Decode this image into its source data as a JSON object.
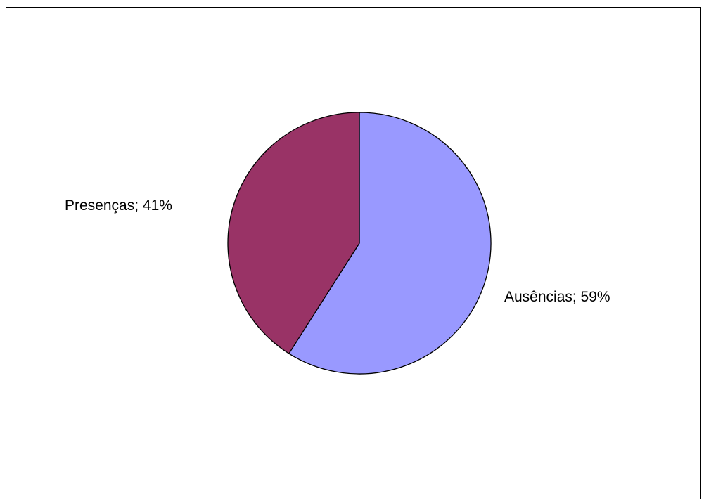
{
  "chart_data": {
    "type": "pie",
    "title": "",
    "slices": [
      {
        "label": "Ausências",
        "value": 59,
        "display": "Ausências; 59%",
        "color": "#9999FF"
      },
      {
        "label": "Presenças",
        "value": 41,
        "display": "Presenças; 41%",
        "color": "#993366"
      }
    ],
    "start_angle": "12 o'clock",
    "direction": "clockwise",
    "legend": "none",
    "data_labels": "category; percent"
  }
}
